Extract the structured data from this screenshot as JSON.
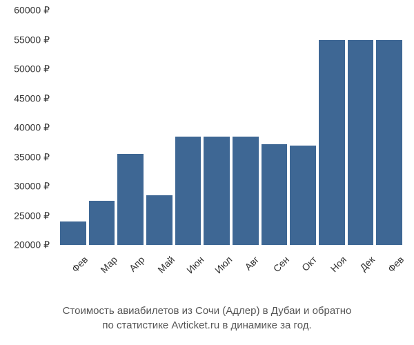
{
  "chart": {
    "type": "bar",
    "categories": [
      "Фев",
      "Мар",
      "Апр",
      "Май",
      "Июн",
      "Июл",
      "Авг",
      "Сен",
      "Окт",
      "Ноя",
      "Дек",
      "Фев"
    ],
    "values": [
      24000,
      27500,
      35500,
      28500,
      38500,
      38500,
      38500,
      37200,
      37000,
      55000,
      55000,
      55000
    ],
    "bar_color": "#3e6794",
    "background_color": "#ffffff",
    "ylim": [
      20000,
      60000
    ],
    "ytick_step": 5000,
    "yticks": [
      20000,
      25000,
      30000,
      35000,
      40000,
      45000,
      50000,
      55000,
      60000
    ],
    "ytick_labels": [
      "20000 ₽",
      "25000 ₽",
      "30000 ₽",
      "35000 ₽",
      "40000 ₽",
      "45000 ₽",
      "50000 ₽",
      "55000 ₽",
      "60000 ₽"
    ],
    "currency_symbol": "₽",
    "label_fontsize": 14,
    "label_color": "#333333",
    "bar_gap": 4,
    "x_label_rotation": -45
  },
  "caption": {
    "line1": "Стоимость авиабилетов из Сочи (Адлер) в Дубаи и обратно",
    "line2": "по статистике Avticket.ru в динамике за год.",
    "fontsize": 15,
    "color": "#555555"
  }
}
